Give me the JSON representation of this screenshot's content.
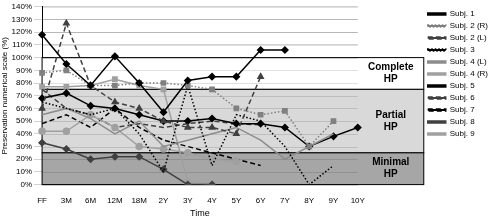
{
  "chart_data": {
    "type": "line",
    "x_label": "Time",
    "y_label": "Preservation numerical scale (%)",
    "categories": [
      "FF",
      "3M",
      "6M",
      "12M",
      "18M",
      "2Y",
      "3Y",
      "4Y",
      "5Y",
      "6Y",
      "7Y",
      "8Y",
      "9Y",
      "10Y"
    ],
    "ylim": [
      0,
      140
    ],
    "yticks": [
      {
        "value": 0,
        "label": "0%"
      },
      {
        "value": 10,
        "label": "10%"
      },
      {
        "value": 20,
        "label": "20%"
      },
      {
        "value": 30,
        "label": "30%"
      },
      {
        "value": 40,
        "label": "40%"
      },
      {
        "value": 50,
        "label": "50%"
      },
      {
        "value": 60,
        "label": "60%"
      },
      {
        "value": 70,
        "label": "70%"
      },
      {
        "value": 80,
        "label": "80%"
      },
      {
        "value": 90,
        "label": "90%"
      },
      {
        "value": 100,
        "label": "100%"
      },
      {
        "value": 110,
        "label": "110%"
      },
      {
        "value": 120,
        "label": "120%"
      },
      {
        "value": 130,
        "label": "130%"
      },
      {
        "value": 140,
        "label": "140%"
      }
    ],
    "grid": true,
    "legend": "right",
    "bands": [
      {
        "label": "Complete HP",
        "from": 75,
        "to": 100,
        "color": "#ffffff"
      },
      {
        "label": "Partial HP",
        "from": 25,
        "to": 75,
        "color": "#d9d9d9"
      },
      {
        "label": "Minimal HP",
        "from": 0,
        "to": 25,
        "color": "#a6a6a6"
      }
    ],
    "series": [
      {
        "name": "Subj. 1",
        "color": "#000000",
        "marker": "diamond",
        "line_style": "solid",
        "values": [
          118,
          95,
          78,
          101,
          80,
          57,
          82,
          85,
          85,
          106,
          106,
          null,
          null,
          null
        ]
      },
      {
        "name": "Subj. 2 (R)",
        "color": "#808080",
        "marker": "square",
        "line_style": "dotted",
        "values": [
          88,
          90,
          78,
          78,
          80,
          80,
          78,
          75,
          60,
          55,
          58,
          30,
          50,
          null
        ]
      },
      {
        "name": "Subj. 2 (L)",
        "color": "#404040",
        "marker": "triangle",
        "line_style": "dashed",
        "values": [
          60,
          127,
          78,
          65,
          60,
          50,
          45,
          45,
          40,
          85,
          null,
          null,
          null,
          null
        ]
      },
      {
        "name": "Subj. 3",
        "color": "#000000",
        "marker": "none",
        "line_style": "dotted",
        "values": [
          65,
          60,
          55,
          60,
          40,
          10,
          78,
          15,
          55,
          50,
          30,
          0,
          15,
          null
        ]
      },
      {
        "name": "Subj. 4 (L)",
        "color": "#8c8c8c",
        "marker": "none",
        "line_style": "solid",
        "values": [
          55,
          60,
          52,
          40,
          50,
          30,
          35,
          40,
          45,
          35,
          20,
          30,
          40,
          null
        ]
      },
      {
        "name": "Subj. 4 (R)",
        "color": "#a0a0a0",
        "marker": "circle",
        "line_style": "solid",
        "values": [
          42,
          42,
          55,
          45,
          30,
          28,
          25,
          20,
          18,
          null,
          null,
          null,
          null,
          null
        ]
      },
      {
        "name": "Subj. 5",
        "color": "#000000",
        "marker": "diamond",
        "line_style": "solid",
        "values": [
          68,
          72,
          62,
          60,
          55,
          50,
          50,
          52,
          48,
          48,
          45,
          30,
          38,
          45
        ]
      },
      {
        "name": "Subj. 6",
        "color": "#404040",
        "marker": "none",
        "line_style": "dashed",
        "values": [
          75,
          60,
          55,
          45,
          48,
          45,
          48,
          50,
          48,
          47,
          null,
          null,
          null,
          null
        ]
      },
      {
        "name": "Subj. 7",
        "color": "#000000",
        "marker": "none",
        "line_style": "dashed",
        "values": [
          48,
          55,
          45,
          60,
          45,
          35,
          30,
          25,
          20,
          15,
          null,
          null,
          null,
          null
        ]
      },
      {
        "name": "Subj. 8",
        "color": "#404040",
        "marker": "diamond",
        "line_style": "solid",
        "values": [
          33,
          28,
          20,
          22,
          22,
          12,
          0,
          0,
          null,
          null,
          null,
          null,
          null,
          null
        ]
      },
      {
        "name": "Subj. 9",
        "color": "#a0a0a0",
        "marker": "square",
        "line_style": "solid",
        "values": [
          77,
          77,
          78,
          83,
          78,
          75,
          2,
          0,
          null,
          null,
          null,
          null,
          null,
          null
        ]
      }
    ]
  }
}
